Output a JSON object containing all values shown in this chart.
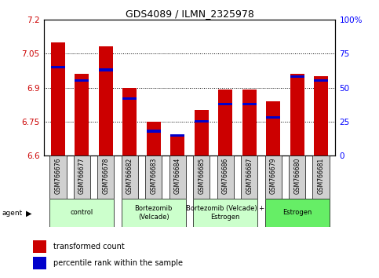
{
  "title": "GDS4089 / ILMN_2325978",
  "samples": [
    "GSM766676",
    "GSM766677",
    "GSM766678",
    "GSM766682",
    "GSM766683",
    "GSM766684",
    "GSM766685",
    "GSM766686",
    "GSM766687",
    "GSM766679",
    "GSM766680",
    "GSM766681"
  ],
  "red_values": [
    7.1,
    6.96,
    7.08,
    6.9,
    6.75,
    6.69,
    6.8,
    6.89,
    6.89,
    6.84,
    6.96,
    6.95
  ],
  "blue_values_pct": [
    65,
    55,
    63,
    42,
    18,
    15,
    25,
    38,
    38,
    28,
    58,
    55
  ],
  "y_min": 6.6,
  "y_max": 7.2,
  "y_ticks": [
    6.6,
    6.75,
    6.9,
    7.05,
    7.2
  ],
  "y_tick_labels": [
    "6.6",
    "6.75",
    "6.9",
    "7.05",
    "7.2"
  ],
  "right_y_ticks": [
    0,
    25,
    50,
    75,
    100
  ],
  "right_y_labels": [
    "0",
    "25",
    "50",
    "75",
    "100%"
  ],
  "bar_width": 0.6,
  "red_color": "#cc0000",
  "blue_color": "#0000cc",
  "group_defs": [
    {
      "label": "control",
      "start": 0,
      "end": 2,
      "color": "#ccffcc"
    },
    {
      "label": "Bortezomib\n(Velcade)",
      "start": 3,
      "end": 5,
      "color": "#ccffcc"
    },
    {
      "label": "Bortezomib (Velcade) +\nEstrogen",
      "start": 6,
      "end": 8,
      "color": "#ccffcc"
    },
    {
      "label": "Estrogen",
      "start": 9,
      "end": 11,
      "color": "#66ee66"
    }
  ],
  "legend_red": "transformed count",
  "legend_blue": "percentile rank within the sample",
  "tick_bg": "#d0d0d0"
}
